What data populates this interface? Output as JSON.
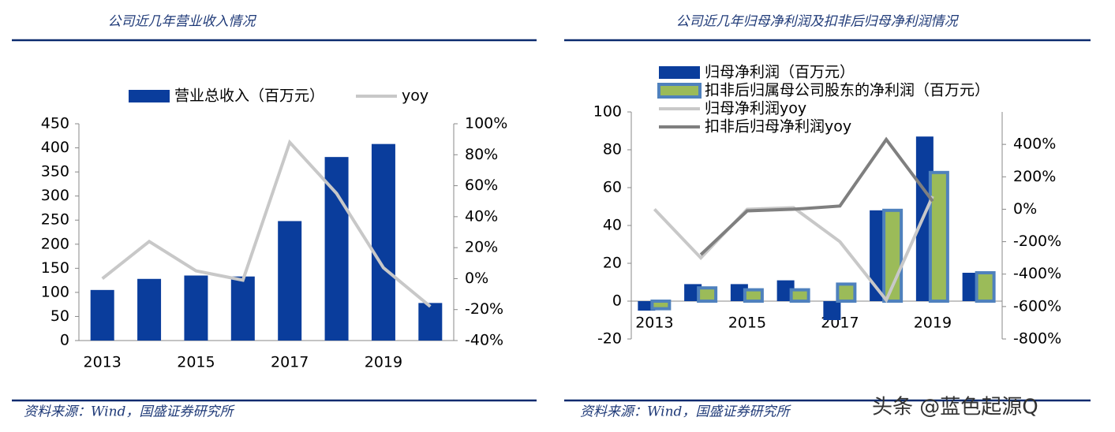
{
  "chart_data": [
    {
      "type": "bar",
      "title": "公司近几年营业收入情况",
      "source": "资料来源：Wind，国盛证券研究所",
      "categories": [
        "2013",
        null,
        "2015",
        null,
        "2017",
        null,
        "2019",
        null
      ],
      "series": [
        {
          "name": "营业总收入（百万元）",
          "type": "bar",
          "color": "#0a3d9c",
          "values": [
            105,
            128,
            135,
            133,
            248,
            381,
            408,
            78
          ]
        },
        {
          "name": "yoy",
          "type": "line",
          "axis": "y2",
          "color": "#c8c8c8",
          "values": [
            0,
            24,
            5,
            -1,
            88,
            55,
            7,
            -18
          ]
        }
      ],
      "ylim": [
        0,
        450
      ],
      "yticks": [
        0,
        50,
        100,
        150,
        200,
        250,
        300,
        350,
        400,
        450
      ],
      "y2lim": [
        -40,
        100
      ],
      "y2ticks": [
        {
          "value": -40,
          "label": "-40%"
        },
        {
          "value": -20,
          "label": "-20%"
        },
        {
          "value": 0,
          "label": "0%"
        },
        {
          "value": 20,
          "label": "20%"
        },
        {
          "value": 40,
          "label": "40%"
        },
        {
          "value": 60,
          "label": "60%"
        },
        {
          "value": 80,
          "label": "80%"
        },
        {
          "value": 100,
          "label": "100%"
        }
      ],
      "legend": "top"
    },
    {
      "type": "bar",
      "title": "公司近几年归母净利润及扣非后归母净利润情况",
      "source": "资料来源：Wind，国盛证券研究所",
      "categories": [
        "2013",
        null,
        "2015",
        null,
        "2017",
        null,
        "2019",
        null
      ],
      "series": [
        {
          "name": "归母净利润（百万元）",
          "type": "bar",
          "color": "#0a3d9c",
          "values": [
            -5,
            9,
            9,
            11,
            -10,
            48,
            87,
            15
          ]
        },
        {
          "name": "扣非后归属母公司股东的净利润（百万元）",
          "type": "bar",
          "color": "#9bbb59",
          "values": [
            -4,
            7,
            6,
            6,
            9,
            48,
            68,
            15
          ]
        },
        {
          "name": "归母净利润yoy",
          "type": "line",
          "axis": "y2",
          "color": "#c8c8c8",
          "values": [
            0,
            -300,
            0,
            10,
            -200,
            -560,
            80,
            null
          ]
        },
        {
          "name": "扣非后归母净利润yoy",
          "type": "line",
          "axis": "y2",
          "color": "#7f7f7f",
          "values": [
            null,
            -280,
            -10,
            0,
            20,
            430,
            50,
            null
          ]
        }
      ],
      "ylim": [
        -20,
        100
      ],
      "yticks": [
        -20,
        0,
        20,
        40,
        60,
        80,
        100
      ],
      "y2lim": [
        -800,
        600
      ],
      "y2ticks": [
        {
          "value": -800,
          "label": "-800%"
        },
        {
          "value": -600,
          "label": "-600%"
        },
        {
          "value": -400,
          "label": "-400%"
        },
        {
          "value": -200,
          "label": "-200%"
        },
        {
          "value": 0,
          "label": "0%"
        },
        {
          "value": 200,
          "label": "200%"
        },
        {
          "value": 400,
          "label": "400%"
        }
      ],
      "legend": "top-left"
    }
  ],
  "watermark": "头条 @蓝色起源Q"
}
